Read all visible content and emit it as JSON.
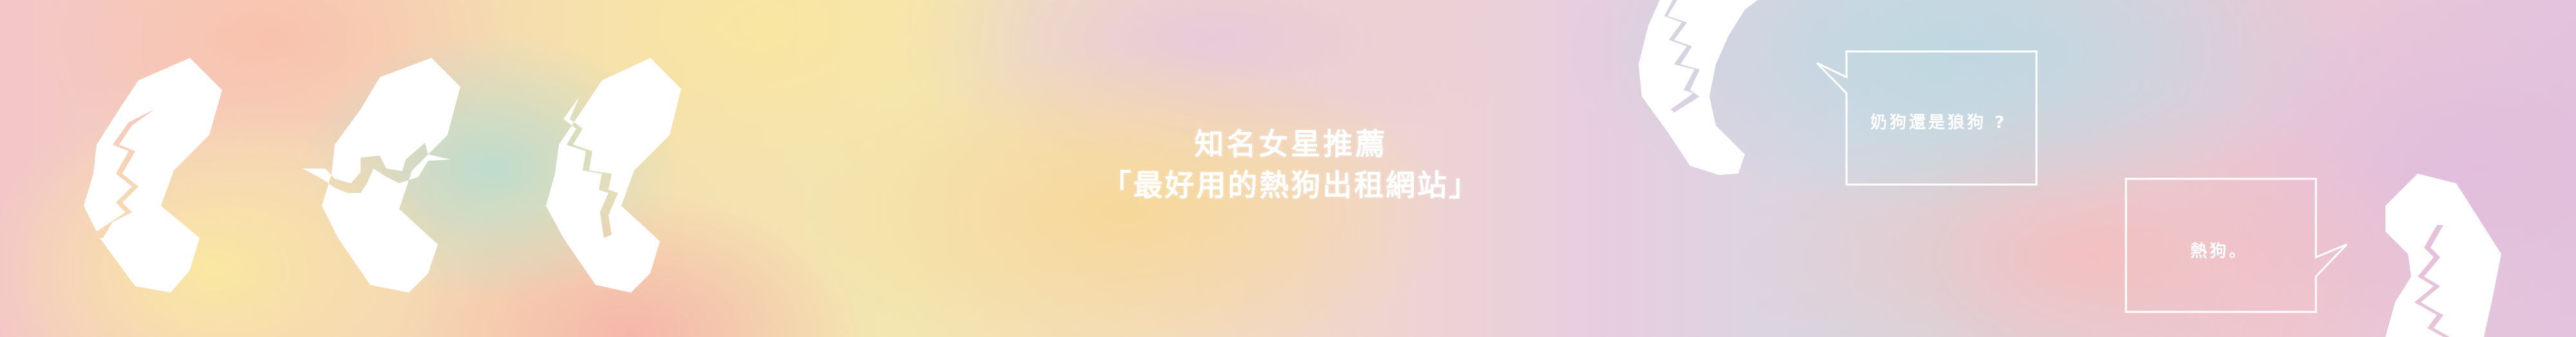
{
  "banner": {
    "title_line1": "知名女星推薦",
    "title_line2": "「最好用的熱狗出租網站」"
  },
  "dialogue": {
    "question": "奶狗還是狼狗 ?",
    "answer": "熱狗。"
  },
  "colors": {
    "shape_fill": "#ffffff",
    "bubble_stroke": "#ffffff",
    "text": "#ffffff",
    "bg_yellow": "#f6e6a6",
    "bg_pink": "#f2c0c2",
    "bg_blue": "#bcd8de",
    "bg_lilac": "#e2c4de"
  },
  "icons": [
    "cracked-egg-shape-icon",
    "speech-bubble-icon"
  ]
}
